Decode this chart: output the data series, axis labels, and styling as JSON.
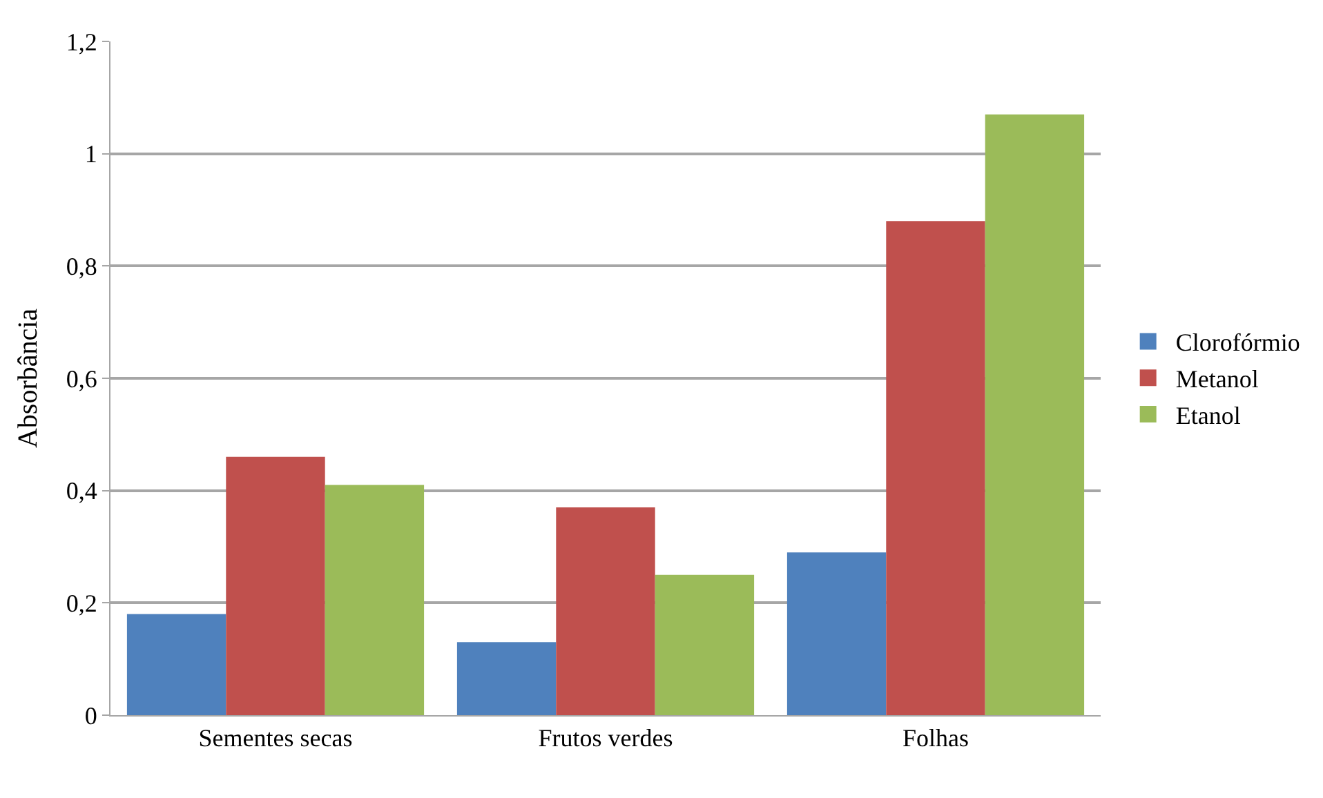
{
  "chart_data": {
    "type": "bar",
    "ylabel": "Absorbância",
    "categories": [
      "Sementes secas",
      "Frutos verdes",
      "Folhas"
    ],
    "series": [
      {
        "name": "Clorofórmio",
        "color": "#4f81bd",
        "values": [
          0.18,
          0.13,
          0.29
        ]
      },
      {
        "name": "Metanol",
        "color": "#c0504d",
        "values": [
          0.46,
          0.37,
          0.88
        ]
      },
      {
        "name": "Etanol",
        "color": "#9bbb59",
        "values": [
          0.41,
          0.25,
          1.07
        ]
      }
    ],
    "ylim": [
      0,
      1.2
    ],
    "yticks": [
      0,
      {
        "value": 0.2,
        "label": "0,2"
      },
      {
        "value": 0.4,
        "label": "0,4"
      },
      {
        "value": 0.6,
        "label": "0,6"
      },
      {
        "value": 0.8,
        "label": "0,8"
      },
      1,
      {
        "value": 1.2,
        "label": "1,2"
      }
    ],
    "grid": "y",
    "legend": "right"
  }
}
